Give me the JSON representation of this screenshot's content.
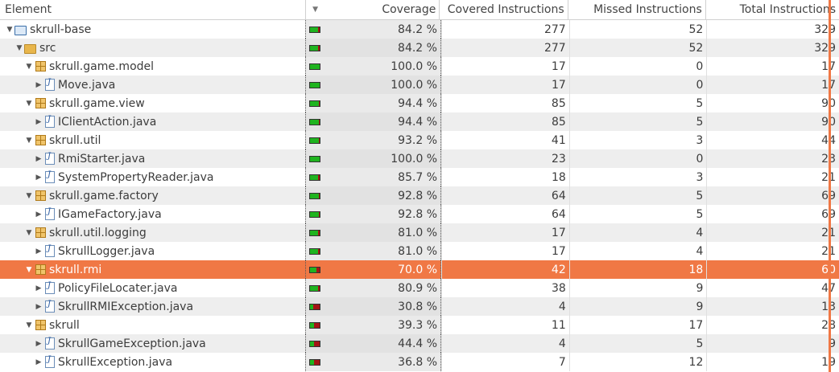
{
  "headers": {
    "element": "Element",
    "sort_indicator": "▼",
    "coverage": "Coverage",
    "covered": "Covered Instructions",
    "missed": "Missed Instructions",
    "total": "Total Instructions"
  },
  "colors": {
    "selected": "#f07845",
    "covered_bar": "#1fb41f",
    "missed_bar": "#a31515"
  },
  "rows": [
    {
      "name": "skrull-base",
      "icon": "project-icon",
      "indent": 0,
      "expanded": true,
      "coverage": "84.2 %",
      "covered": "277",
      "missed": "52",
      "total": "329",
      "ratio": 0.842
    },
    {
      "name": "src",
      "icon": "folder-icon",
      "indent": 1,
      "expanded": true,
      "coverage": "84.2 %",
      "covered": "277",
      "missed": "52",
      "total": "329",
      "ratio": 0.842
    },
    {
      "name": "skrull.game.model",
      "icon": "package-icon",
      "indent": 2,
      "expanded": true,
      "coverage": "100.0 %",
      "covered": "17",
      "missed": "0",
      "total": "17",
      "ratio": 1.0
    },
    {
      "name": "Move.java",
      "icon": "java-file-icon",
      "indent": 3,
      "expanded": false,
      "coverage": "100.0 %",
      "covered": "17",
      "missed": "0",
      "total": "17",
      "ratio": 1.0
    },
    {
      "name": "skrull.game.view",
      "icon": "package-icon",
      "indent": 2,
      "expanded": true,
      "coverage": "94.4 %",
      "covered": "85",
      "missed": "5",
      "total": "90",
      "ratio": 0.944
    },
    {
      "name": "IClientAction.java",
      "icon": "java-file-icon",
      "indent": 3,
      "expanded": false,
      "coverage": "94.4 %",
      "covered": "85",
      "missed": "5",
      "total": "90",
      "ratio": 0.944
    },
    {
      "name": "skrull.util",
      "icon": "package-icon",
      "indent": 2,
      "expanded": true,
      "coverage": "93.2 %",
      "covered": "41",
      "missed": "3",
      "total": "44",
      "ratio": 0.932
    },
    {
      "name": "RmiStarter.java",
      "icon": "java-file-icon",
      "indent": 3,
      "expanded": false,
      "coverage": "100.0 %",
      "covered": "23",
      "missed": "0",
      "total": "23",
      "ratio": 1.0
    },
    {
      "name": "SystemPropertyReader.java",
      "icon": "java-file-icon",
      "indent": 3,
      "expanded": false,
      "coverage": "85.7 %",
      "covered": "18",
      "missed": "3",
      "total": "21",
      "ratio": 0.857
    },
    {
      "name": "skrull.game.factory",
      "icon": "package-icon",
      "indent": 2,
      "expanded": true,
      "coverage": "92.8 %",
      "covered": "64",
      "missed": "5",
      "total": "69",
      "ratio": 0.928
    },
    {
      "name": "IGameFactory.java",
      "icon": "java-file-icon",
      "indent": 3,
      "expanded": false,
      "coverage": "92.8 %",
      "covered": "64",
      "missed": "5",
      "total": "69",
      "ratio": 0.928
    },
    {
      "name": "skrull.util.logging",
      "icon": "package-icon",
      "indent": 2,
      "expanded": true,
      "coverage": "81.0 %",
      "covered": "17",
      "missed": "4",
      "total": "21",
      "ratio": 0.81
    },
    {
      "name": "SkrullLogger.java",
      "icon": "java-file-icon",
      "indent": 3,
      "expanded": false,
      "coverage": "81.0 %",
      "covered": "17",
      "missed": "4",
      "total": "21",
      "ratio": 0.81
    },
    {
      "name": "skrull.rmi",
      "icon": "package-icon",
      "indent": 2,
      "expanded": true,
      "selected": true,
      "coverage": "70.0 %",
      "covered": "42",
      "missed": "18",
      "total": "60",
      "ratio": 0.7
    },
    {
      "name": "PolicyFileLocater.java",
      "icon": "java-file-icon",
      "indent": 3,
      "expanded": false,
      "coverage": "80.9 %",
      "covered": "38",
      "missed": "9",
      "total": "47",
      "ratio": 0.809
    },
    {
      "name": "SkrullRMIException.java",
      "icon": "java-file-icon",
      "indent": 3,
      "expanded": false,
      "coverage": "30.8 %",
      "covered": "4",
      "missed": "9",
      "total": "13",
      "ratio": 0.308
    },
    {
      "name": "skrull",
      "icon": "package-icon",
      "indent": 2,
      "expanded": true,
      "coverage": "39.3 %",
      "covered": "11",
      "missed": "17",
      "total": "28",
      "ratio": 0.393
    },
    {
      "name": "SkrullGameException.java",
      "icon": "java-file-icon",
      "indent": 3,
      "expanded": false,
      "coverage": "44.4 %",
      "covered": "4",
      "missed": "5",
      "total": "9",
      "ratio": 0.444
    },
    {
      "name": "SkrullException.java",
      "icon": "java-file-icon",
      "indent": 3,
      "expanded": false,
      "coverage": "36.8 %",
      "covered": "7",
      "missed": "12",
      "total": "19",
      "ratio": 0.368
    }
  ]
}
